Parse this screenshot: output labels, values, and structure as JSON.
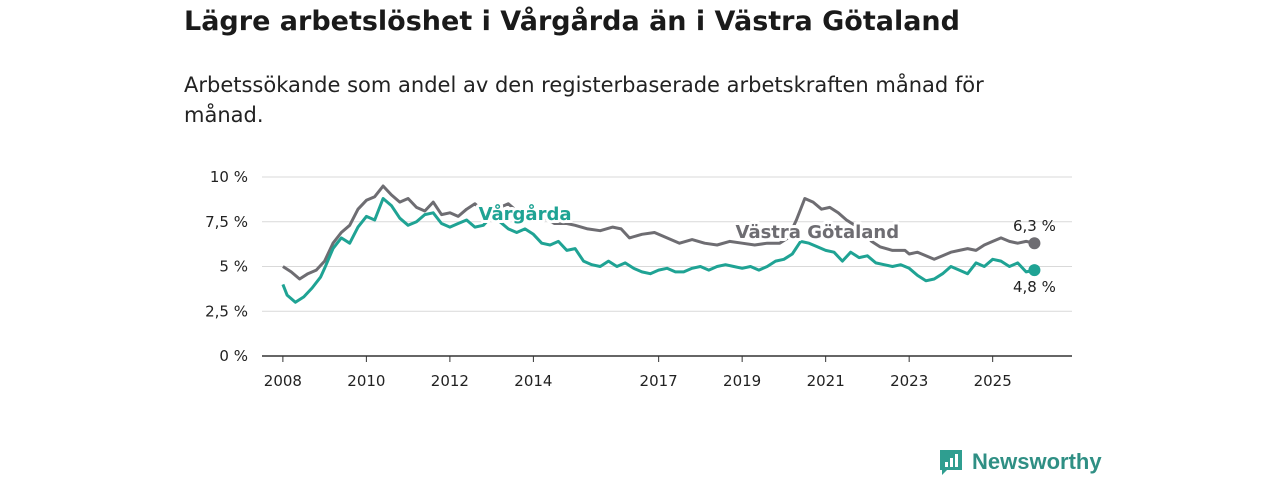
{
  "header": {
    "title": "Lägre arbetslöshet i Vårgårda än i Västra Götaland",
    "subtitle": "Arbetssökande som andel av den registerbaserade arbetskraften månad för månad."
  },
  "brand": {
    "name": "Newsworthy",
    "icon": "newsworthy-logo-icon",
    "color": "#2f9e90"
  },
  "chart_data": {
    "type": "line",
    "title": "Lägre arbetslöshet i Vårgårda än i Västra Götaland",
    "subtitle": "Arbetssökande som andel av den registerbaserade arbetskraften månad för månad.",
    "xlabel": "",
    "ylabel": "",
    "xlim": [
      2007.5,
      2026.9
    ],
    "ylim": [
      0,
      10
    ],
    "grid": true,
    "y_ticks": [
      {
        "value": 0,
        "label": "0 %"
      },
      {
        "value": 2.5,
        "label": "2,5 %"
      },
      {
        "value": 5,
        "label": "5 %"
      },
      {
        "value": 7.5,
        "label": "7,5 %"
      },
      {
        "value": 10,
        "label": "10 %"
      }
    ],
    "x_ticks": [
      {
        "value": 2008,
        "label": "2008"
      },
      {
        "value": 2010,
        "label": "2010"
      },
      {
        "value": 2012,
        "label": "2012"
      },
      {
        "value": 2014,
        "label": "2014"
      },
      {
        "value": 2017,
        "label": "2017"
      },
      {
        "value": 2019,
        "label": "2019"
      },
      {
        "value": 2021,
        "label": "2021"
      },
      {
        "value": 2023,
        "label": "2023"
      },
      {
        "value": 2025,
        "label": "2025"
      }
    ],
    "series": [
      {
        "name": "Västra Götaland",
        "color": "#6e6d72",
        "end_label": "6,3 %",
        "label_at": [
          2020.8,
          6.6
        ],
        "points": [
          [
            2008.0,
            5.0
          ],
          [
            2008.2,
            4.7
          ],
          [
            2008.4,
            4.3
          ],
          [
            2008.6,
            4.6
          ],
          [
            2008.8,
            4.8
          ],
          [
            2009.0,
            5.3
          ],
          [
            2009.2,
            6.3
          ],
          [
            2009.4,
            6.9
          ],
          [
            2009.6,
            7.3
          ],
          [
            2009.8,
            8.2
          ],
          [
            2010.0,
            8.7
          ],
          [
            2010.2,
            8.9
          ],
          [
            2010.4,
            9.5
          ],
          [
            2010.6,
            9.0
          ],
          [
            2010.8,
            8.6
          ],
          [
            2011.0,
            8.8
          ],
          [
            2011.2,
            8.3
          ],
          [
            2011.4,
            8.1
          ],
          [
            2011.6,
            8.6
          ],
          [
            2011.8,
            7.9
          ],
          [
            2012.0,
            8.0
          ],
          [
            2012.2,
            7.8
          ],
          [
            2012.4,
            8.2
          ],
          [
            2012.6,
            8.5
          ],
          [
            2012.8,
            8.1
          ],
          [
            2013.0,
            7.8
          ],
          [
            2013.2,
            8.3
          ],
          [
            2013.4,
            8.5
          ],
          [
            2013.6,
            8.1
          ],
          [
            2013.8,
            8.2
          ],
          [
            2014.0,
            8.0
          ],
          [
            2014.2,
            7.8
          ],
          [
            2014.5,
            7.4
          ],
          [
            2014.8,
            7.4
          ],
          [
            2015.0,
            7.3
          ],
          [
            2015.3,
            7.1
          ],
          [
            2015.6,
            7.0
          ],
          [
            2015.9,
            7.2
          ],
          [
            2016.1,
            7.1
          ],
          [
            2016.3,
            6.6
          ],
          [
            2016.6,
            6.8
          ],
          [
            2016.9,
            6.9
          ],
          [
            2017.2,
            6.6
          ],
          [
            2017.5,
            6.3
          ],
          [
            2017.8,
            6.5
          ],
          [
            2018.1,
            6.3
          ],
          [
            2018.4,
            6.2
          ],
          [
            2018.7,
            6.4
          ],
          [
            2019.0,
            6.3
          ],
          [
            2019.3,
            6.2
          ],
          [
            2019.6,
            6.3
          ],
          [
            2019.9,
            6.3
          ],
          [
            2020.1,
            6.6
          ],
          [
            2020.3,
            7.6
          ],
          [
            2020.5,
            8.8
          ],
          [
            2020.7,
            8.6
          ],
          [
            2020.9,
            8.2
          ],
          [
            2021.1,
            8.3
          ],
          [
            2021.3,
            8.0
          ],
          [
            2021.5,
            7.6
          ],
          [
            2021.7,
            7.3
          ],
          [
            2021.9,
            7.0
          ],
          [
            2022.1,
            6.4
          ],
          [
            2022.3,
            6.1
          ],
          [
            2022.6,
            5.9
          ],
          [
            2022.9,
            5.9
          ],
          [
            2023.0,
            5.7
          ],
          [
            2023.2,
            5.8
          ],
          [
            2023.4,
            5.6
          ],
          [
            2023.6,
            5.4
          ],
          [
            2023.8,
            5.6
          ],
          [
            2024.0,
            5.8
          ],
          [
            2024.2,
            5.9
          ],
          [
            2024.4,
            6.0
          ],
          [
            2024.6,
            5.9
          ],
          [
            2024.8,
            6.2
          ],
          [
            2025.0,
            6.4
          ],
          [
            2025.2,
            6.6
          ],
          [
            2025.4,
            6.4
          ],
          [
            2025.6,
            6.3
          ],
          [
            2025.8,
            6.4
          ],
          [
            2026.0,
            6.3
          ]
        ]
      },
      {
        "name": "Vårgårda",
        "color": "#1fa394",
        "end_label": "4,8 %",
        "label_at": [
          2013.8,
          7.6
        ],
        "points": [
          [
            2008.0,
            4.0
          ],
          [
            2008.1,
            3.4
          ],
          [
            2008.3,
            3.0
          ],
          [
            2008.5,
            3.3
          ],
          [
            2008.7,
            3.8
          ],
          [
            2008.9,
            4.4
          ],
          [
            2009.0,
            4.9
          ],
          [
            2009.2,
            6.0
          ],
          [
            2009.4,
            6.6
          ],
          [
            2009.6,
            6.3
          ],
          [
            2009.8,
            7.2
          ],
          [
            2010.0,
            7.8
          ],
          [
            2010.2,
            7.6
          ],
          [
            2010.4,
            8.8
          ],
          [
            2010.6,
            8.4
          ],
          [
            2010.8,
            7.7
          ],
          [
            2011.0,
            7.3
          ],
          [
            2011.2,
            7.5
          ],
          [
            2011.4,
            7.9
          ],
          [
            2011.6,
            8.0
          ],
          [
            2011.8,
            7.4
          ],
          [
            2012.0,
            7.2
          ],
          [
            2012.2,
            7.4
          ],
          [
            2012.4,
            7.6
          ],
          [
            2012.6,
            7.2
          ],
          [
            2012.8,
            7.3
          ],
          [
            2013.0,
            7.8
          ],
          [
            2013.2,
            7.5
          ],
          [
            2013.4,
            7.1
          ],
          [
            2013.6,
            6.9
          ],
          [
            2013.8,
            7.1
          ],
          [
            2014.0,
            6.8
          ],
          [
            2014.2,
            6.3
          ],
          [
            2014.4,
            6.2
          ],
          [
            2014.6,
            6.4
          ],
          [
            2014.8,
            5.9
          ],
          [
            2015.0,
            6.0
          ],
          [
            2015.2,
            5.3
          ],
          [
            2015.4,
            5.1
          ],
          [
            2015.6,
            5.0
          ],
          [
            2015.8,
            5.3
          ],
          [
            2016.0,
            5.0
          ],
          [
            2016.2,
            5.2
          ],
          [
            2016.4,
            4.9
          ],
          [
            2016.6,
            4.7
          ],
          [
            2016.8,
            4.6
          ],
          [
            2017.0,
            4.8
          ],
          [
            2017.2,
            4.9
          ],
          [
            2017.4,
            4.7
          ],
          [
            2017.6,
            4.7
          ],
          [
            2017.8,
            4.9
          ],
          [
            2018.0,
            5.0
          ],
          [
            2018.2,
            4.8
          ],
          [
            2018.4,
            5.0
          ],
          [
            2018.6,
            5.1
          ],
          [
            2018.8,
            5.0
          ],
          [
            2019.0,
            4.9
          ],
          [
            2019.2,
            5.0
          ],
          [
            2019.4,
            4.8
          ],
          [
            2019.6,
            5.0
          ],
          [
            2019.8,
            5.3
          ],
          [
            2020.0,
            5.4
          ],
          [
            2020.2,
            5.7
          ],
          [
            2020.4,
            6.4
          ],
          [
            2020.6,
            6.3
          ],
          [
            2020.8,
            6.1
          ],
          [
            2021.0,
            5.9
          ],
          [
            2021.2,
            5.8
          ],
          [
            2021.4,
            5.3
          ],
          [
            2021.6,
            5.8
          ],
          [
            2021.8,
            5.5
          ],
          [
            2022.0,
            5.6
          ],
          [
            2022.2,
            5.2
          ],
          [
            2022.4,
            5.1
          ],
          [
            2022.6,
            5.0
          ],
          [
            2022.8,
            5.1
          ],
          [
            2023.0,
            4.9
          ],
          [
            2023.2,
            4.5
          ],
          [
            2023.4,
            4.2
          ],
          [
            2023.6,
            4.3
          ],
          [
            2023.8,
            4.6
          ],
          [
            2024.0,
            5.0
          ],
          [
            2024.2,
            4.8
          ],
          [
            2024.4,
            4.6
          ],
          [
            2024.6,
            5.2
          ],
          [
            2024.8,
            5.0
          ],
          [
            2025.0,
            5.4
          ],
          [
            2025.2,
            5.3
          ],
          [
            2025.4,
            5.0
          ],
          [
            2025.6,
            5.2
          ],
          [
            2025.8,
            4.7
          ],
          [
            2026.0,
            4.8
          ]
        ]
      }
    ]
  }
}
